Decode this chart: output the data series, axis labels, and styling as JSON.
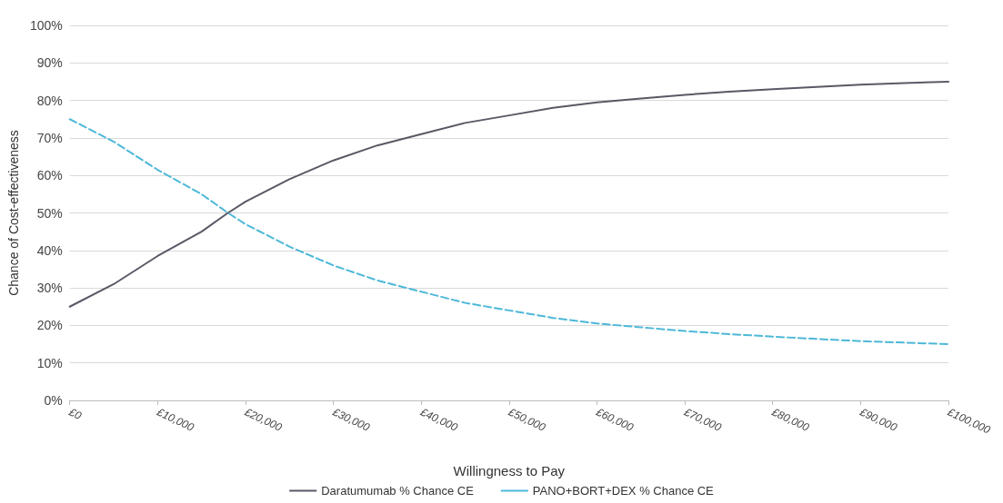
{
  "chart_data": {
    "type": "line",
    "xlabel": "Willingness to Pay",
    "ylabel": "Chance of Cost-effectiveness",
    "x": [
      0,
      5000,
      10000,
      15000,
      18000,
      20000,
      25000,
      30000,
      35000,
      40000,
      45000,
      50000,
      55000,
      60000,
      65000,
      70000,
      75000,
      80000,
      85000,
      90000,
      95000,
      100000
    ],
    "series": [
      {
        "name": "Daratumumab % Chance CE",
        "color": "#595966",
        "line_style": "solid",
        "values": [
          25,
          31,
          38.5,
          45,
          50,
          53,
          59,
          64,
          68,
          71,
          74,
          76,
          78,
          79.5,
          80.5,
          81.5,
          82.3,
          83,
          83.6,
          84.2,
          84.6,
          85
        ]
      },
      {
        "name": "PANO+BORT+DEX % Chance CE",
        "color": "#4db8d8",
        "line_style": "dashed",
        "values": [
          75,
          69,
          61.5,
          55,
          50,
          47,
          41,
          36,
          32,
          29,
          26,
          24,
          22,
          20.5,
          19.5,
          18.5,
          17.7,
          17,
          16.4,
          15.8,
          15.4,
          15
        ]
      }
    ],
    "xlim": [
      0,
      100000
    ],
    "xticks": [
      {
        "value": 0,
        "label": "£0"
      },
      {
        "value": 10000,
        "label": "£10,000"
      },
      {
        "value": 20000,
        "label": "£20,000"
      },
      {
        "value": 30000,
        "label": "£30,000"
      },
      {
        "value": 40000,
        "label": "£40,000"
      },
      {
        "value": 50000,
        "label": "£50,000"
      },
      {
        "value": 60000,
        "label": "£60,000"
      },
      {
        "value": 70000,
        "label": "£70,000"
      },
      {
        "value": 80000,
        "label": "£80,000"
      },
      {
        "value": 90000,
        "label": "£90,000"
      },
      {
        "value": 100000,
        "label": "£100,000"
      }
    ],
    "ylim": [
      0,
      100
    ],
    "yticks": [
      {
        "value": 0,
        "label": "0%"
      },
      {
        "value": 10,
        "label": "10%"
      },
      {
        "value": 20,
        "label": "20%"
      },
      {
        "value": 30,
        "label": "30%"
      },
      {
        "value": 40,
        "label": "40%"
      },
      {
        "value": 50,
        "label": "50%"
      },
      {
        "value": 60,
        "label": "60%"
      },
      {
        "value": 70,
        "label": "70%"
      },
      {
        "value": 80,
        "label": "80%"
      },
      {
        "value": 90,
        "label": "90%"
      },
      {
        "value": 100,
        "label": "100%"
      }
    ],
    "grid": "y",
    "legend": "bottom",
    "marker": "none"
  }
}
